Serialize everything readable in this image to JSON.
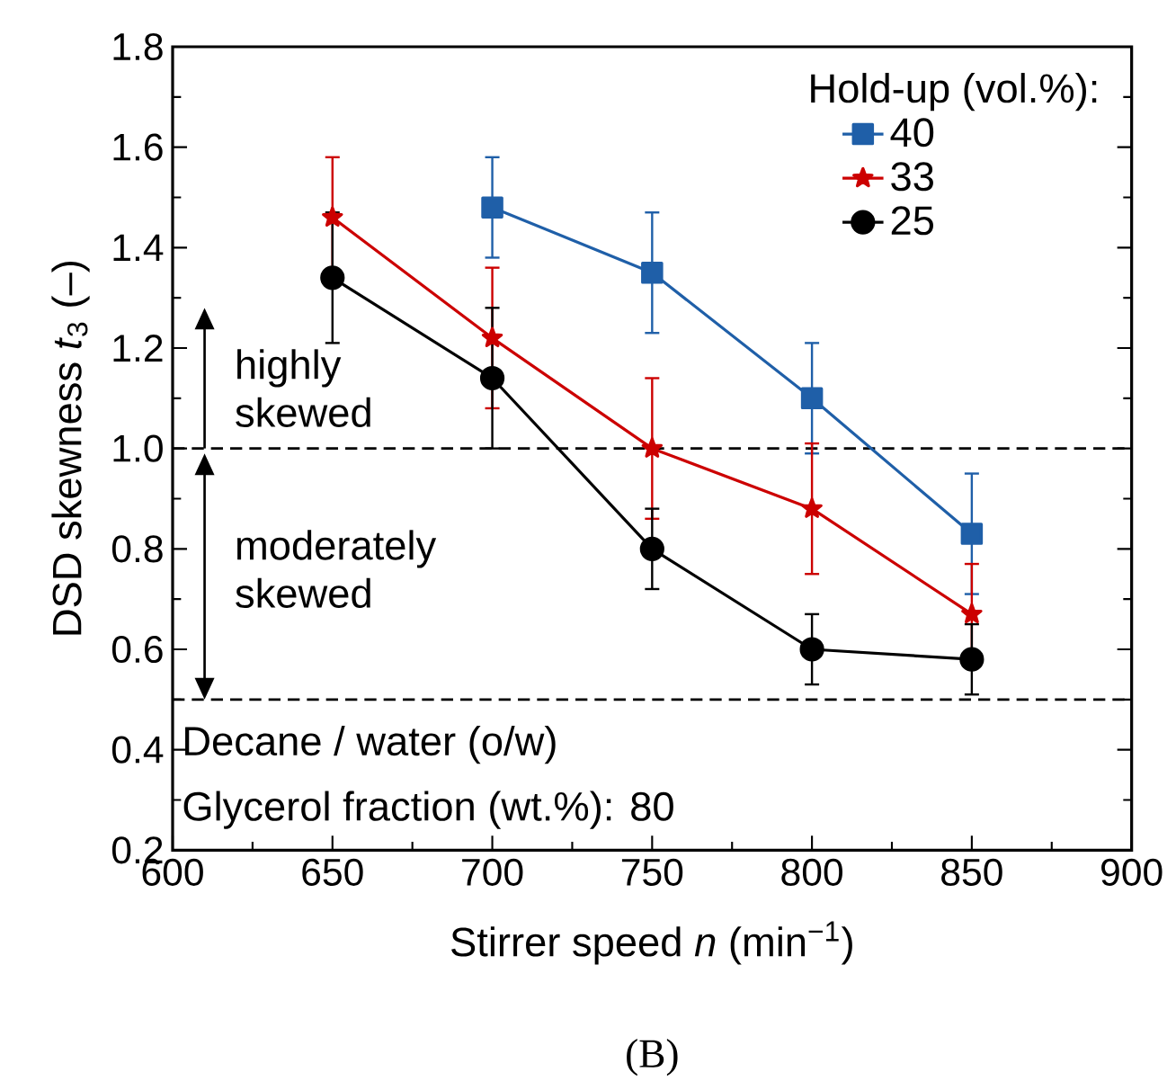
{
  "chart_data": {
    "type": "line",
    "xlabel": "Stirrer speed *n* (min$^{−1}$)",
    "ylabel": "DSD skewness *t*$_{3}$ (–)",
    "legend_title": "Hold-up (vol.%):",
    "legend": "top right",
    "grid": false,
    "xlim": [
      600,
      900
    ],
    "xticks": [
      600,
      650,
      700,
      750,
      800,
      850,
      900
    ],
    "ylim": [
      0.2,
      1.8
    ],
    "yticks": [
      0.2,
      0.4,
      0.6,
      0.8,
      {
        "value": 1.0,
        "label": "1.0"
      },
      1.2,
      1.4,
      1.6,
      1.8
    ],
    "series": [
      {
        "name": "40",
        "color": "#1f5fa8",
        "marker": "square",
        "x": [
          700,
          750,
          800,
          850
        ],
        "values": [
          1.48,
          1.35,
          1.1,
          0.83
        ],
        "errors": [
          0.1,
          0.12,
          0.11,
          0.12
        ]
      },
      {
        "name": "33",
        "color": "#cc0000",
        "marker": "star",
        "x": [
          650,
          700,
          750,
          800,
          850
        ],
        "values": [
          1.46,
          1.22,
          1.0,
          0.88,
          0.67
        ],
        "errors": [
          0.12,
          0.14,
          0.14,
          0.13,
          0.1
        ]
      },
      {
        "name": "25",
        "color": "#000000",
        "marker": "circle",
        "x": [
          650,
          700,
          750,
          800,
          850
        ],
        "values": [
          1.34,
          1.14,
          0.8,
          0.6,
          0.58
        ],
        "errors": [
          0.13,
          0.14,
          0.08,
          0.07,
          0.07
        ]
      }
    ],
    "ref_lines": [
      {
        "axis": "y",
        "value": 1.0,
        "line_style": "dashed",
        "color": "#000000"
      },
      {
        "axis": "y",
        "value": 0.5,
        "line_style": "dashed",
        "color": "#000000"
      }
    ],
    "annotations": [
      "highly skewed",
      "moderately skewed",
      "Decane / water (o/w)",
      "Glycerol fraction (wt.%): 80",
      "(B)"
    ]
  }
}
